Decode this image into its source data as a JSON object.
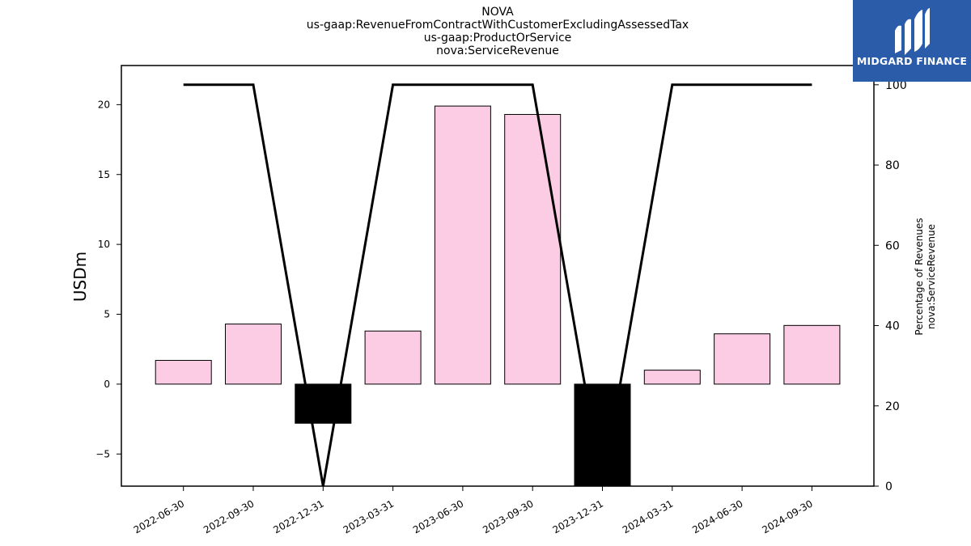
{
  "header": {
    "title_lines": [
      "NOVA",
      "us-gaap:RevenueFromContractWithCustomerExcludingAssessedTax",
      "us-gaap:ProductOrService",
      "nova:ServiceRevenue"
    ]
  },
  "logo": {
    "text": "MIDGARD FINANCE",
    "background": "#2a5caa"
  },
  "chart_data": {
    "type": "bar",
    "categories": [
      "2022-06-30",
      "2022-09-30",
      "2022-12-31",
      "2023-03-31",
      "2023-06-30",
      "2023-09-30",
      "2023-12-31",
      "2024-03-31",
      "2024-06-30",
      "2024-09-30"
    ],
    "series": [
      {
        "values": [
          1.7,
          4.3,
          -2.8,
          3.8,
          19.9,
          19.3,
          -7.3,
          1.0,
          3.6,
          4.2
        ],
        "axis": "left",
        "type": "bar",
        "positive_color": "#fccbe4",
        "negative_color": "#000000"
      },
      {
        "values": [
          100,
          100,
          0,
          100,
          100,
          100,
          0,
          100,
          100,
          100
        ],
        "axis": "right",
        "type": "line",
        "color": "#000000"
      }
    ],
    "ylabel": "USDm",
    "ylabel_right": [
      "Percentage of Revenues",
      "nova:ServiceRevenue"
    ],
    "ylim": [
      -7.3,
      22.8
    ],
    "ylim_right": [
      0,
      104.8
    ],
    "yticks": [
      -5,
      0,
      5,
      10,
      15,
      20
    ],
    "yticks_right": [
      0,
      20,
      40,
      60,
      80,
      100
    ],
    "grid": false
  }
}
